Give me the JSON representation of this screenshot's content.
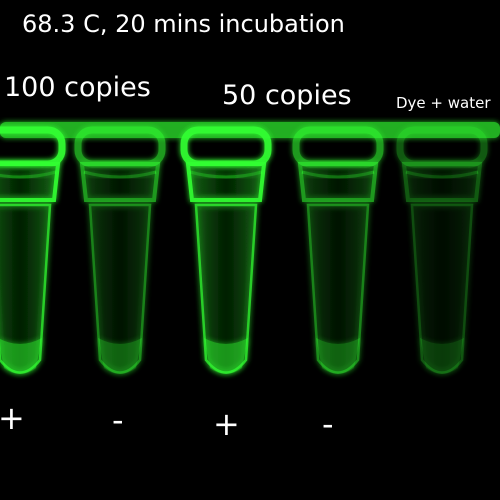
{
  "title": "68.3 C, 20 mins incubation",
  "groups": {
    "g1": "100 copies",
    "g2": "50 copies",
    "g3": "Dye + water"
  },
  "signs": [
    "+",
    "-",
    "+",
    "-"
  ],
  "colors": {
    "background": "#000000",
    "fluorescence": "#33ff33",
    "text": "#ffffff"
  },
  "tubes": [
    {
      "sign": "+",
      "brightness": 0.95
    },
    {
      "sign": "-",
      "brightness": 0.6
    },
    {
      "sign": "+",
      "brightness": 0.95
    },
    {
      "sign": "-",
      "brightness": 0.6
    },
    {
      "sign": "",
      "brightness": 0.35
    }
  ]
}
